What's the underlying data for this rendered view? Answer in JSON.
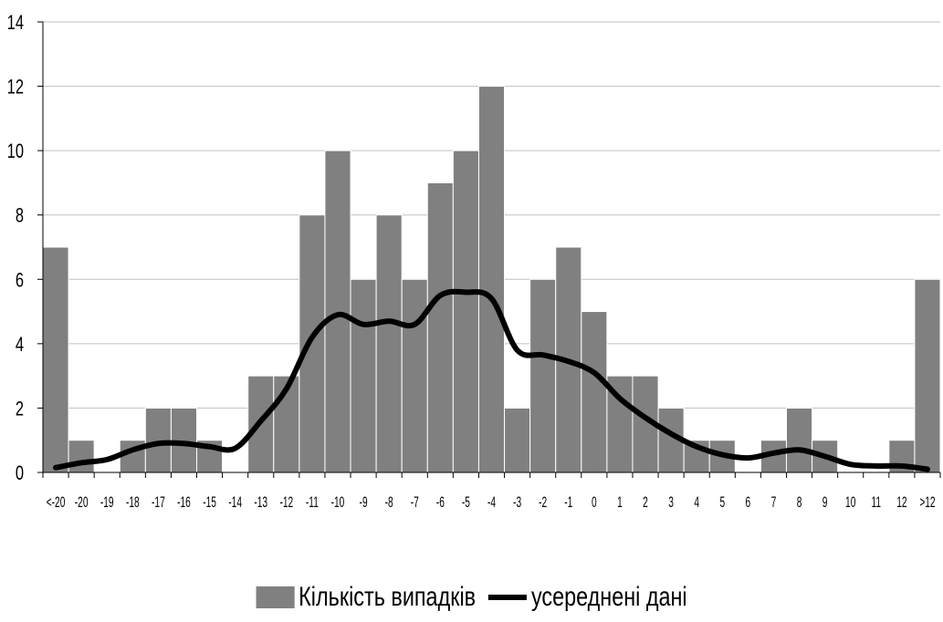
{
  "colors": {
    "bar": "#808080",
    "line": "#000000",
    "grid": "#c0c0c0",
    "axis": "#000000"
  },
  "chart_data": {
    "type": "bar",
    "categories": [
      "<-20",
      "-20",
      "-19",
      "-18",
      "-17",
      "-16",
      "-15",
      "-14",
      "-13",
      "-12",
      "-11",
      "-10",
      "-9",
      "-8",
      "-7",
      "-6",
      "-5",
      "-4",
      "-3",
      "-2",
      "-1",
      "0",
      "1",
      "2",
      "3",
      "4",
      "5",
      "6",
      "7",
      "8",
      "9",
      "10",
      "11",
      "12",
      ">12"
    ],
    "series": [
      {
        "name": "Кількість випадків",
        "type": "bar",
        "values": [
          7,
          1,
          0,
          1,
          2,
          2,
          1,
          0,
          3,
          3,
          8,
          10,
          6,
          8,
          6,
          9,
          10,
          12,
          2,
          6,
          7,
          5,
          3,
          3,
          2,
          1,
          1,
          0,
          1,
          2,
          1,
          0,
          0,
          1,
          6
        ]
      },
      {
        "name": "усереднені дані",
        "type": "line",
        "values": [
          0.15,
          0.3,
          0.4,
          0.7,
          0.9,
          0.9,
          0.8,
          0.75,
          1.6,
          2.6,
          4.2,
          4.9,
          4.6,
          4.7,
          4.6,
          5.5,
          5.6,
          5.4,
          3.8,
          3.65,
          3.45,
          3.1,
          2.3,
          1.7,
          1.2,
          0.8,
          0.55,
          0.45,
          0.6,
          0.7,
          0.5,
          0.25,
          0.2,
          0.2,
          0.1
        ]
      }
    ],
    "ylim": [
      0,
      14
    ],
    "yticks": [
      0,
      2,
      4,
      6,
      8,
      10,
      12,
      14
    ],
    "grid": true,
    "legend_position": "bottom"
  }
}
